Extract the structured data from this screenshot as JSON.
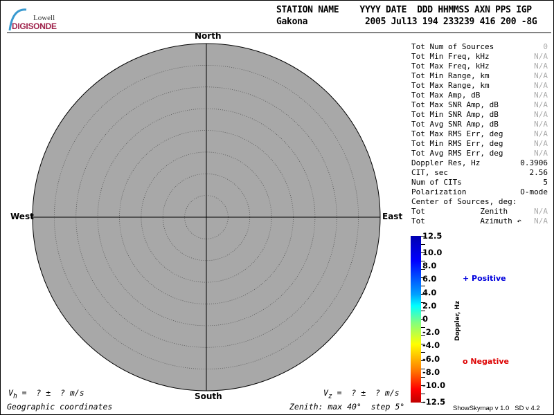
{
  "logo": {
    "line1": "Lowell",
    "line2": "DIGISONDE"
  },
  "header": {
    "labels_row": "STATION NAME    YYYY DATE  DDD HHMMSS AXN PPS IGP",
    "station": "Gakona",
    "values_row": "2005 Jul13 194 233239 416 200 -8G"
  },
  "skymap": {
    "north": "North",
    "south": "South",
    "east": "East",
    "west": "West",
    "zenith_max_deg": 40,
    "zenith_step_deg": 5,
    "background_color": "#a8a8a8"
  },
  "stats": [
    {
      "label": "Tot Num of Sources",
      "value": "0",
      "muted": true
    },
    {
      "label": "Tot Min Freq, kHz",
      "value": "N/A",
      "muted": true
    },
    {
      "label": "Tot Max Freq, kHz",
      "value": "N/A",
      "muted": true
    },
    {
      "label": "Tot Min Range, km",
      "value": "N/A",
      "muted": true
    },
    {
      "label": "Tot Max Range, km",
      "value": "N/A",
      "muted": true
    },
    {
      "label": "Tot Max Amp, dB",
      "value": "N/A",
      "muted": true
    },
    {
      "label": "Tot Max SNR Amp, dB",
      "value": "N/A",
      "muted": true
    },
    {
      "label": "Tot Min SNR Amp, dB",
      "value": "N/A",
      "muted": true
    },
    {
      "label": "Tot Avg SNR Amp, dB",
      "value": "N/A",
      "muted": true
    },
    {
      "label": "Tot Max RMS Err, deg",
      "value": "N/A",
      "muted": true
    },
    {
      "label": "Tot Min RMS Err, deg",
      "value": "N/A",
      "muted": true
    },
    {
      "label": "Tot Avg RMS Err, deg",
      "value": "N/A",
      "muted": true
    },
    {
      "label": "Doppler Res, Hz",
      "value": "0.3906",
      "muted": false
    },
    {
      "label": "CIT, sec",
      "value": "2.56",
      "muted": false
    },
    {
      "label": "Num of CITs",
      "value": "5",
      "muted": false
    },
    {
      "label": "Polarization",
      "value": "O-mode",
      "muted": false
    },
    {
      "label": "Center of Sources, deg:",
      "value": "",
      "muted": false
    },
    {
      "label": "Tot            Zenith",
      "value": "N/A",
      "muted": true
    },
    {
      "label": "Tot            Azimuth ↶",
      "value": "N/A",
      "muted": true
    }
  ],
  "colorbar": {
    "ticks": [
      "12.5",
      "10.0",
      "8.0",
      "6.0",
      "4.0",
      "2.0",
      "0",
      "-2.0",
      "-4.0",
      "-6.0",
      "-8.0",
      "-10.0",
      "-12.5"
    ],
    "min": -12.5,
    "max": 12.5,
    "axis_label": "Doppler, Hz"
  },
  "legend": {
    "positive": "+ Positive",
    "negative": "o Negative",
    "positive_color": "#0000dd",
    "negative_color": "#dd0000"
  },
  "footer": {
    "vh": "V",
    "vh_sub": "h",
    "vh_rest": " =  ? ±  ? m/s",
    "vz": "V",
    "vz_sub": "z",
    "vz_rest": " =  ? ±  ? m/s",
    "coords": "Geographic coordinates",
    "zenith": "Zenith: max 40°  step 5°",
    "version": "ShowSkymap v 1.0   SD v 4.2"
  }
}
